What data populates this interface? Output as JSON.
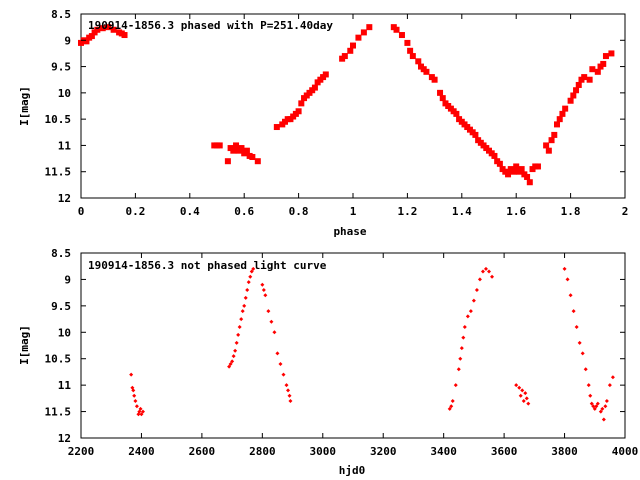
{
  "chart_data": [
    {
      "type": "scatter",
      "title": "190914-1856.3 phased with P=251.40day",
      "xlabel": "phase",
      "ylabel": "I[mag]",
      "xlim": [
        0,
        2
      ],
      "ylim": [
        12,
        8.5
      ],
      "y_inverted": true,
      "xticks": [
        "0",
        "0.2",
        "0.4",
        "0.6",
        "0.8",
        "1",
        "1.2",
        "1.4",
        "1.6",
        "1.8",
        "2"
      ],
      "yticks": [
        "8.5",
        "9",
        "9.5",
        "10",
        "10.5",
        "11",
        "11.5",
        "12"
      ],
      "marker_color": "#ff0000",
      "marker": "filled-square",
      "points": [
        [
          0.0,
          9.05
        ],
        [
          0.01,
          9.0
        ],
        [
          0.02,
          9.02
        ],
        [
          0.03,
          8.95
        ],
        [
          0.04,
          8.92
        ],
        [
          0.05,
          8.85
        ],
        [
          0.06,
          8.8
        ],
        [
          0.08,
          8.77
        ],
        [
          0.1,
          8.75
        ],
        [
          0.12,
          8.8
        ],
        [
          0.14,
          8.85
        ],
        [
          0.15,
          8.87
        ],
        [
          0.16,
          8.9
        ],
        [
          0.49,
          11.0
        ],
        [
          0.5,
          11.0
        ],
        [
          0.51,
          11.0
        ],
        [
          0.54,
          11.3
        ],
        [
          0.55,
          11.05
        ],
        [
          0.56,
          11.1
        ],
        [
          0.57,
          11.0
        ],
        [
          0.58,
          11.1
        ],
        [
          0.59,
          11.05
        ],
        [
          0.6,
          11.15
        ],
        [
          0.61,
          11.1
        ],
        [
          0.62,
          11.2
        ],
        [
          0.63,
          11.22
        ],
        [
          0.65,
          11.3
        ],
        [
          0.72,
          10.65
        ],
        [
          0.74,
          10.6
        ],
        [
          0.75,
          10.55
        ],
        [
          0.76,
          10.5
        ],
        [
          0.77,
          10.5
        ],
        [
          0.78,
          10.45
        ],
        [
          0.79,
          10.4
        ],
        [
          0.8,
          10.35
        ],
        [
          0.81,
          10.2
        ],
        [
          0.82,
          10.1
        ],
        [
          0.83,
          10.05
        ],
        [
          0.84,
          10.0
        ],
        [
          0.85,
          9.95
        ],
        [
          0.86,
          9.9
        ],
        [
          0.87,
          9.8
        ],
        [
          0.88,
          9.75
        ],
        [
          0.89,
          9.7
        ],
        [
          0.9,
          9.65
        ],
        [
          0.96,
          9.35
        ],
        [
          0.97,
          9.3
        ],
        [
          0.99,
          9.2
        ],
        [
          1.0,
          9.1
        ],
        [
          1.02,
          8.95
        ],
        [
          1.04,
          8.85
        ],
        [
          1.06,
          8.75
        ],
        [
          1.15,
          8.75
        ],
        [
          1.16,
          8.8
        ],
        [
          1.18,
          8.9
        ],
        [
          1.2,
          9.05
        ],
        [
          1.21,
          9.2
        ],
        [
          1.22,
          9.3
        ],
        [
          1.24,
          9.4
        ],
        [
          1.25,
          9.5
        ],
        [
          1.26,
          9.55
        ],
        [
          1.27,
          9.6
        ],
        [
          1.29,
          9.7
        ],
        [
          1.3,
          9.75
        ],
        [
          1.32,
          10.0
        ],
        [
          1.33,
          10.1
        ],
        [
          1.34,
          10.2
        ],
        [
          1.35,
          10.25
        ],
        [
          1.36,
          10.3
        ],
        [
          1.37,
          10.35
        ],
        [
          1.38,
          10.4
        ],
        [
          1.39,
          10.5
        ],
        [
          1.4,
          10.55
        ],
        [
          1.41,
          10.6
        ],
        [
          1.42,
          10.65
        ],
        [
          1.43,
          10.7
        ],
        [
          1.44,
          10.75
        ],
        [
          1.45,
          10.8
        ],
        [
          1.46,
          10.9
        ],
        [
          1.47,
          10.95
        ],
        [
          1.48,
          11.0
        ],
        [
          1.49,
          11.05
        ],
        [
          1.5,
          11.1
        ],
        [
          1.51,
          11.15
        ],
        [
          1.52,
          11.2
        ],
        [
          1.53,
          11.3
        ],
        [
          1.54,
          11.35
        ],
        [
          1.55,
          11.45
        ],
        [
          1.56,
          11.5
        ],
        [
          1.57,
          11.55
        ],
        [
          1.58,
          11.45
        ],
        [
          1.59,
          11.5
        ],
        [
          1.6,
          11.4
        ],
        [
          1.61,
          11.5
        ],
        [
          1.62,
          11.45
        ],
        [
          1.63,
          11.55
        ],
        [
          1.64,
          11.6
        ],
        [
          1.65,
          11.7
        ],
        [
          1.66,
          11.45
        ],
        [
          1.67,
          11.4
        ],
        [
          1.68,
          11.4
        ],
        [
          1.71,
          11.0
        ],
        [
          1.72,
          11.1
        ],
        [
          1.73,
          10.9
        ],
        [
          1.74,
          10.8
        ],
        [
          1.75,
          10.6
        ],
        [
          1.76,
          10.5
        ],
        [
          1.77,
          10.4
        ],
        [
          1.78,
          10.3
        ],
        [
          1.8,
          10.15
        ],
        [
          1.81,
          10.05
        ],
        [
          1.82,
          9.95
        ],
        [
          1.83,
          9.85
        ],
        [
          1.84,
          9.75
        ],
        [
          1.85,
          9.7
        ],
        [
          1.87,
          9.75
        ],
        [
          1.88,
          9.55
        ],
        [
          1.9,
          9.6
        ],
        [
          1.91,
          9.5
        ],
        [
          1.92,
          9.45
        ],
        [
          1.93,
          9.3
        ],
        [
          1.95,
          9.25
        ]
      ]
    },
    {
      "type": "scatter",
      "title": "190914-1856.3 not phased light curve",
      "xlabel": "hjd0",
      "ylabel": "I[mag]",
      "xlim": [
        2200,
        4000
      ],
      "ylim": [
        12,
        8.5
      ],
      "y_inverted": true,
      "xticks": [
        "2200",
        "2400",
        "2600",
        "2800",
        "3000",
        "3200",
        "3400",
        "3600",
        "3800",
        "4000"
      ],
      "yticks": [
        "8.5",
        "9",
        "9.5",
        "10",
        "10.5",
        "11",
        "11.5",
        "12"
      ],
      "marker_color": "#ff0000",
      "marker": "small-diamond",
      "points": [
        [
          2366,
          10.8
        ],
        [
          2370,
          11.05
        ],
        [
          2373,
          11.1
        ],
        [
          2376,
          11.2
        ],
        [
          2380,
          11.3
        ],
        [
          2385,
          11.4
        ],
        [
          2390,
          11.55
        ],
        [
          2393,
          11.5
        ],
        [
          2397,
          11.45
        ],
        [
          2400,
          11.55
        ],
        [
          2405,
          11.5
        ],
        [
          2690,
          10.65
        ],
        [
          2695,
          10.6
        ],
        [
          2700,
          10.55
        ],
        [
          2705,
          10.45
        ],
        [
          2710,
          10.35
        ],
        [
          2715,
          10.2
        ],
        [
          2720,
          10.05
        ],
        [
          2725,
          9.9
        ],
        [
          2730,
          9.75
        ],
        [
          2735,
          9.6
        ],
        [
          2740,
          9.5
        ],
        [
          2745,
          9.35
        ],
        [
          2750,
          9.2
        ],
        [
          2755,
          9.05
        ],
        [
          2760,
          8.95
        ],
        [
          2765,
          8.85
        ],
        [
          2770,
          8.8
        ],
        [
          2800,
          9.1
        ],
        [
          2805,
          9.2
        ],
        [
          2810,
          9.3
        ],
        [
          2820,
          9.6
        ],
        [
          2830,
          9.8
        ],
        [
          2840,
          10.0
        ],
        [
          2850,
          10.4
        ],
        [
          2860,
          10.6
        ],
        [
          2870,
          10.8
        ],
        [
          2880,
          11.0
        ],
        [
          2885,
          11.1
        ],
        [
          2890,
          11.2
        ],
        [
          2893,
          11.3
        ],
        [
          3420,
          11.45
        ],
        [
          3425,
          11.4
        ],
        [
          3430,
          11.3
        ],
        [
          3440,
          11.0
        ],
        [
          3450,
          10.7
        ],
        [
          3455,
          10.5
        ],
        [
          3460,
          10.3
        ],
        [
          3465,
          10.1
        ],
        [
          3470,
          9.9
        ],
        [
          3480,
          9.7
        ],
        [
          3490,
          9.6
        ],
        [
          3500,
          9.4
        ],
        [
          3510,
          9.2
        ],
        [
          3520,
          9.0
        ],
        [
          3530,
          8.85
        ],
        [
          3540,
          8.8
        ],
        [
          3550,
          8.85
        ],
        [
          3560,
          8.95
        ],
        [
          3640,
          11.0
        ],
        [
          3650,
          11.05
        ],
        [
          3655,
          11.2
        ],
        [
          3660,
          11.1
        ],
        [
          3665,
          11.3
        ],
        [
          3670,
          11.15
        ],
        [
          3675,
          11.25
        ],
        [
          3680,
          11.35
        ],
        [
          3800,
          8.8
        ],
        [
          3810,
          9.0
        ],
        [
          3820,
          9.3
        ],
        [
          3830,
          9.6
        ],
        [
          3840,
          9.9
        ],
        [
          3850,
          10.2
        ],
        [
          3860,
          10.4
        ],
        [
          3870,
          10.7
        ],
        [
          3880,
          11.0
        ],
        [
          3885,
          11.2
        ],
        [
          3890,
          11.35
        ],
        [
          3895,
          11.4
        ],
        [
          3900,
          11.45
        ],
        [
          3905,
          11.4
        ],
        [
          3910,
          11.35
        ],
        [
          3920,
          11.5
        ],
        [
          3925,
          11.45
        ],
        [
          3930,
          11.65
        ],
        [
          3935,
          11.4
        ],
        [
          3940,
          11.3
        ],
        [
          3950,
          11.0
        ],
        [
          3960,
          10.85
        ]
      ]
    }
  ]
}
